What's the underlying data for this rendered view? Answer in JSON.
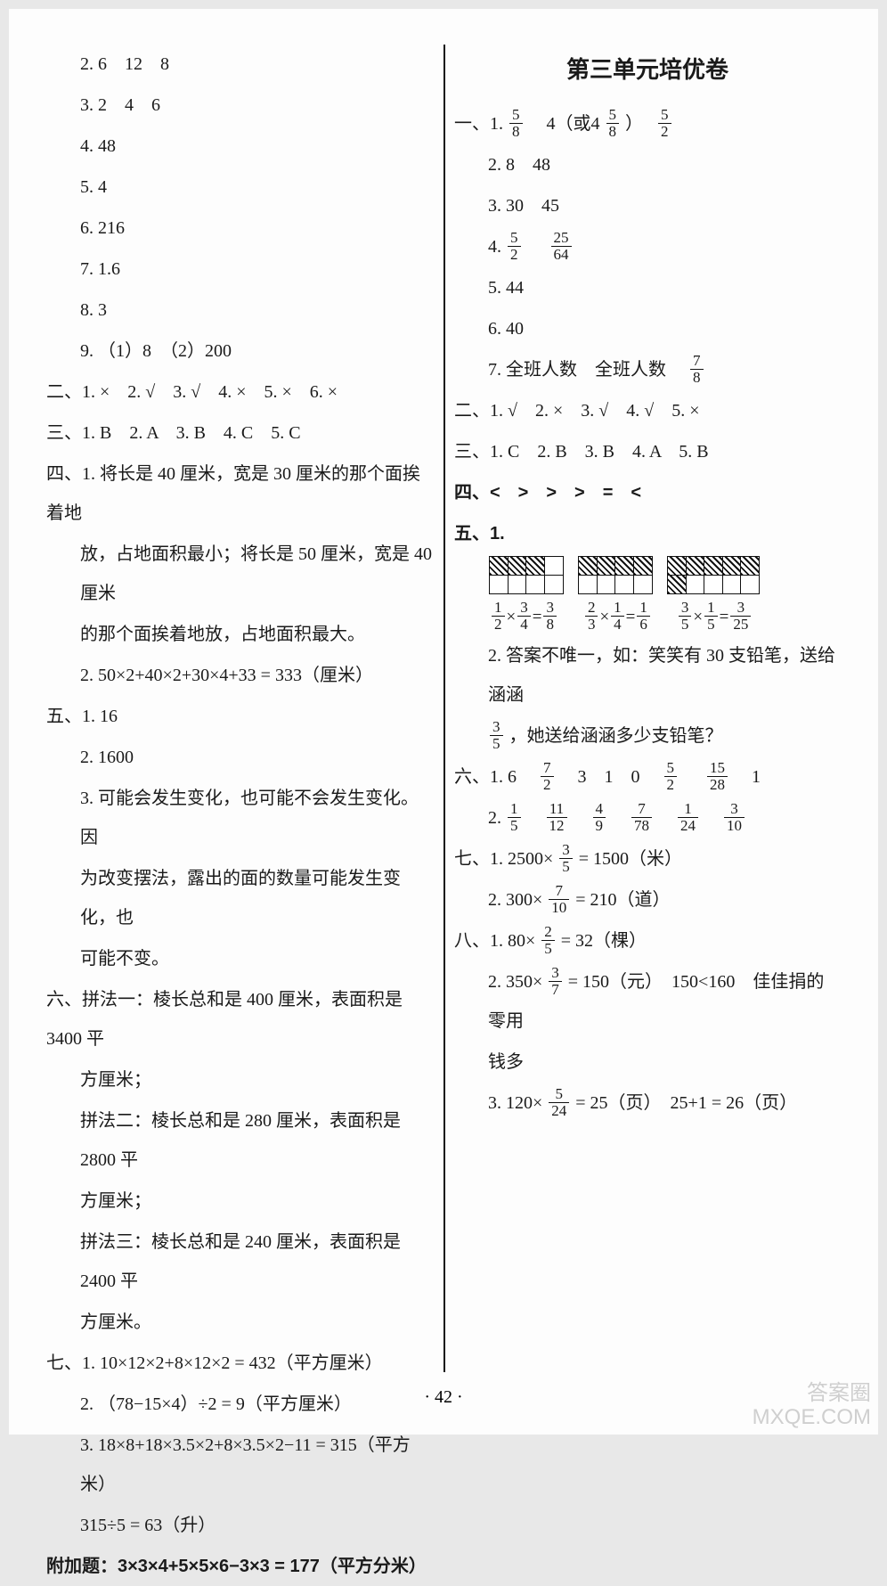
{
  "page_number": "· 42 ·",
  "watermark_top": "答案圈",
  "watermark_bottom": "MXQE.COM",
  "left": {
    "l2": "2. 6　12　8",
    "l3": "3. 2　4　6",
    "l4": "4. 48",
    "l5": "5. 4",
    "l6": "6. 216",
    "l7": "7. 1.6",
    "l8": "8. 3",
    "l9": "9. （1）8　（2）200",
    "s2": "二、1. ×　2. √　3. √　4. ×　5. ×　6. ×",
    "s3": "三、1. B　2. A　3. B　4. C　5. C",
    "s4a": "四、1. 将长是 40 厘米，宽是 30 厘米的那个面挨着地",
    "s4b": "放，占地面积最小；将长是 50 厘米，宽是 40 厘米",
    "s4c": "的那个面挨着地放，占地面积最大。",
    "s4_2": "2. 50×2+40×2+30×4+33 = 333（厘米）",
    "s5a": "五、1. 16",
    "s5b": "2. 1600",
    "s5c": "3. 可能会发生变化，也可能不会发生变化。因",
    "s5d": "为改变摆法，露出的面的数量可能发生变化，也",
    "s5e": "可能不变。",
    "s6a": "六、拼法一：棱长总和是 400 厘米，表面积是 3400 平",
    "s6a2": "方厘米；",
    "s6b": "拼法二：棱长总和是 280 厘米，表面积是 2800 平",
    "s6b2": "方厘米；",
    "s6c": "拼法三：棱长总和是 240 厘米，表面积是 2400 平",
    "s6c2": "方厘米。",
    "s7a": "七、1. 10×12×2+8×12×2 = 432（平方厘米）",
    "s7b": "2. （78−15×4）÷2 = 9（平方厘米）",
    "s7c": "3. 18×8+18×3.5×2+8×3.5×2−11 = 315（平方米）",
    "s7d": "315÷5 = 63（升）",
    "extra": "附加题：3×3×4+5×5×6−3×3 = 177（平方分米）"
  },
  "right": {
    "title": "第三单元培优卷",
    "s1_1a": "一、1. ",
    "s1_1_f1n": "5",
    "s1_1_f1d": "8",
    "s1_1_mid": "　4（或4 ",
    "s1_1_f2n": "5",
    "s1_1_f2d": "8",
    "s1_1_mid2": "）　",
    "s1_1_f3n": "5",
    "s1_1_f3d": "2",
    "s1_2": "2. 8　48",
    "s1_3": "3. 30　45",
    "s1_4a": "4. ",
    "s1_4_f1n": "5",
    "s1_4_f1d": "2",
    "s1_4_f2n": "25",
    "s1_4_f2d": "64",
    "s1_5": "5. 44",
    "s1_6": "6. 40",
    "s1_7a": "7. 全班人数　全班人数　",
    "s1_7_fn": "7",
    "s1_7_fd": "8",
    "s2": "二、1. √　2. ×　3. √　4. √　5. ×",
    "s3": "三、1. C　2. B　3. B　4. A　5. B",
    "s4": "四、<　>　>　>　=　<",
    "s5label": "五、1.",
    "grids": [
      {
        "rows": 2,
        "cols": 4,
        "shaded": [
          [
            0,
            0
          ],
          [
            0,
            1
          ],
          [
            0,
            2
          ]
        ]
      },
      {
        "rows": 2,
        "cols": 4,
        "shaded": [
          [
            0,
            0
          ],
          [
            0,
            1
          ],
          [
            0,
            2
          ],
          [
            0,
            3
          ]
        ]
      },
      {
        "rows": 2,
        "cols": 5,
        "shaded": [
          [
            0,
            0
          ],
          [
            0,
            1
          ],
          [
            0,
            2
          ],
          [
            0,
            3
          ],
          [
            0,
            4
          ],
          [
            1,
            0
          ]
        ]
      }
    ],
    "eq1_a_n": "1",
    "eq1_a_d": "2",
    "eq1_b_n": "3",
    "eq1_b_d": "4",
    "eq1_r_n": "3",
    "eq1_r_d": "8",
    "eq2_a_n": "2",
    "eq2_a_d": "3",
    "eq2_b_n": "1",
    "eq2_b_d": "4",
    "eq2_r_n": "1",
    "eq2_r_d": "6",
    "eq3_a_n": "3",
    "eq3_a_d": "5",
    "eq3_b_n": "1",
    "eq3_b_d": "5",
    "eq3_r_n": "3",
    "eq3_r_d": "25",
    "s5_2a": "2. 答案不唯一，如：笑笑有 30 支铅笔，送给涵涵",
    "s5_2_fn": "3",
    "s5_2_fd": "5",
    "s5_2b": "，她送给涵涵多少支铅笔？",
    "s6_1a": "六、1. 6　",
    "s6_1_f1n": "7",
    "s6_1_f1d": "2",
    "s6_1b": "　3　1　0　",
    "s6_1_f2n": "5",
    "s6_1_f2d": "2",
    "s6_1_f3n": "15",
    "s6_1_f3d": "28",
    "s6_1c": "　1",
    "s6_2a": "2. ",
    "s6_2_f1n": "1",
    "s6_2_f1d": "5",
    "s6_2_f2n": "11",
    "s6_2_f2d": "12",
    "s6_2_f3n": "4",
    "s6_2_f3d": "9",
    "s6_2_f4n": "7",
    "s6_2_f4d": "78",
    "s6_2_f5n": "1",
    "s6_2_f5d": "24",
    "s6_2_f6n": "3",
    "s6_2_f6d": "10",
    "s7_1a": "七、1. 2500×",
    "s7_1_fn": "3",
    "s7_1_fd": "5",
    "s7_1b": " = 1500（米）",
    "s7_2a": "2. 300×",
    "s7_2_fn": "7",
    "s7_2_fd": "10",
    "s7_2b": " = 210（道）",
    "s8_1a": "八、1. 80×",
    "s8_1_fn": "2",
    "s8_1_fd": "5",
    "s8_1b": " = 32（棵）",
    "s8_2a": "2. 350×",
    "s8_2_fn": "3",
    "s8_2_fd": "7",
    "s8_2b": " = 150（元）　150<160　佳佳捐的零用",
    "s8_2c": "钱多",
    "s8_3a": "3. 120×",
    "s8_3_fn": "5",
    "s8_3_fd": "24",
    "s8_3b": " = 25（页）　25+1 = 26（页）"
  }
}
